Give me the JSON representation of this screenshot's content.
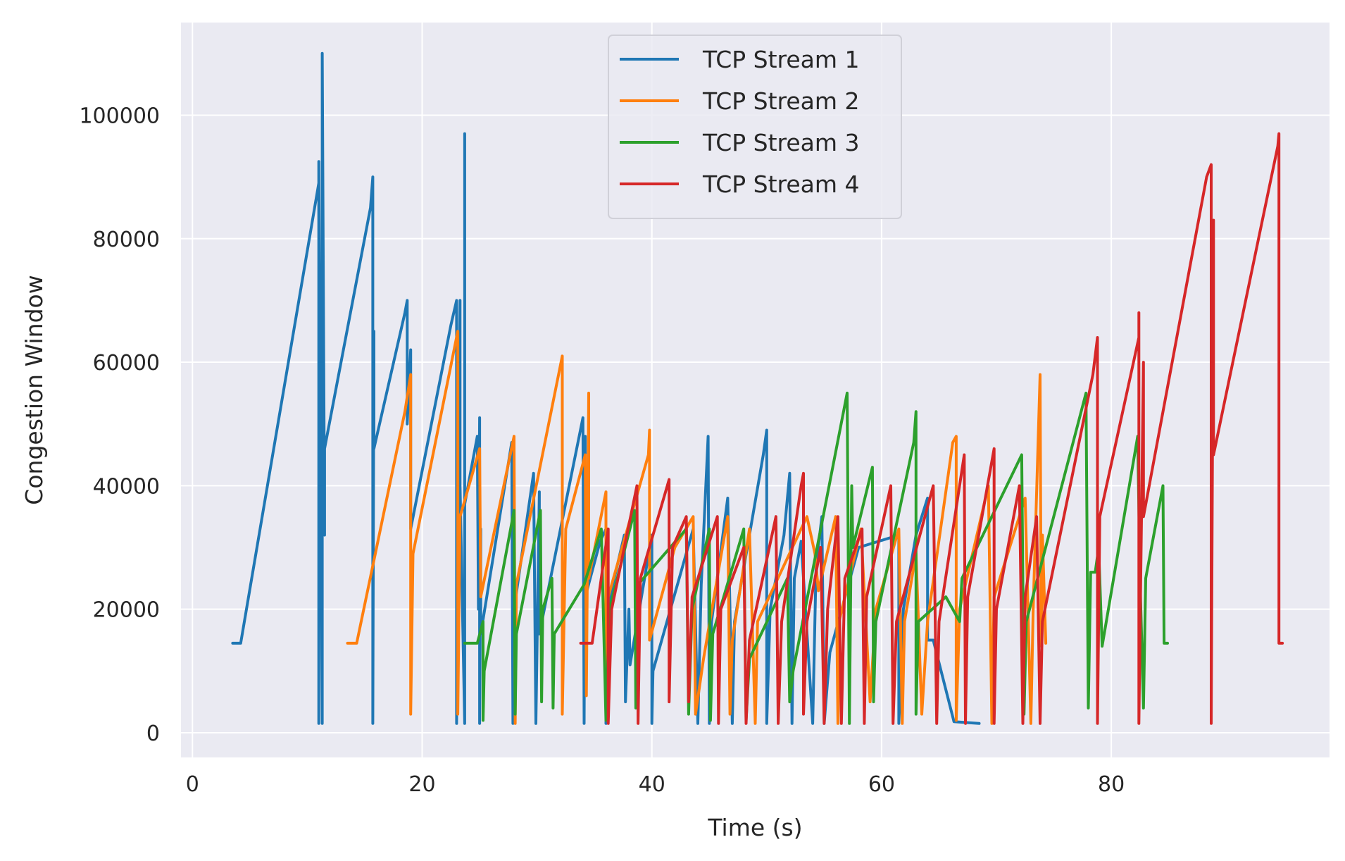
{
  "chart_data": {
    "type": "line",
    "title": "",
    "xlabel": "Time (s)",
    "ylabel": "Congestion Window",
    "xlim": [
      -1,
      99
    ],
    "ylim": [
      -4000,
      115000
    ],
    "xticks": [
      0,
      20,
      40,
      60,
      80
    ],
    "yticks": [
      0,
      20000,
      40000,
      60000,
      80000,
      100000
    ],
    "grid": true,
    "legend_position": "top-center",
    "series": [
      {
        "name": "TCP Stream 1",
        "color": "#1f77b4",
        "points": [
          [
            3.5,
            14500
          ],
          [
            4.2,
            14500
          ],
          [
            11.0,
            89000
          ],
          [
            11.0,
            1500
          ],
          [
            11.0,
            92500
          ],
          [
            11.3,
            1500
          ],
          [
            11.3,
            110000
          ],
          [
            11.5,
            32000
          ],
          [
            11.5,
            46000
          ],
          [
            15.5,
            85000
          ],
          [
            15.7,
            90000
          ],
          [
            15.7,
            1500
          ],
          [
            15.8,
            65000
          ],
          [
            15.8,
            46000
          ],
          [
            18.5,
            68000
          ],
          [
            18.7,
            70000
          ],
          [
            18.7,
            50000
          ],
          [
            19.0,
            62000
          ],
          [
            19.0,
            33000
          ],
          [
            22.5,
            66000
          ],
          [
            23.0,
            70000
          ],
          [
            23.0,
            1500
          ],
          [
            23.3,
            70000
          ],
          [
            23.3,
            40000
          ],
          [
            23.7,
            1500
          ],
          [
            23.7,
            97000
          ],
          [
            23.7,
            37000
          ],
          [
            24.8,
            48000
          ],
          [
            24.9,
            20000
          ],
          [
            25.0,
            51000
          ],
          [
            25.0,
            1500
          ],
          [
            25.1,
            33000
          ],
          [
            25.1,
            16000
          ],
          [
            27.8,
            47000
          ],
          [
            27.9,
            1500
          ],
          [
            28.0,
            40000
          ],
          [
            28.0,
            20000
          ],
          [
            29.7,
            42000
          ],
          [
            29.9,
            1500
          ],
          [
            30.2,
            39000
          ],
          [
            30.2,
            16000
          ],
          [
            34.0,
            51000
          ],
          [
            34.1,
            1500
          ],
          [
            34.2,
            48000
          ],
          [
            34.2,
            22000
          ],
          [
            35.5,
            31000
          ],
          [
            36.0,
            33000
          ],
          [
            36.0,
            1500
          ],
          [
            36.1,
            20000
          ],
          [
            37.6,
            32000
          ],
          [
            37.7,
            5000
          ],
          [
            38.0,
            20000
          ],
          [
            38.1,
            11000
          ],
          [
            40.0,
            32000
          ],
          [
            40.0,
            1500
          ],
          [
            40.1,
            10000
          ],
          [
            43.6,
            33000
          ],
          [
            44.0,
            1500
          ],
          [
            44.3,
            24000
          ],
          [
            44.9,
            48000
          ],
          [
            45.0,
            1500
          ],
          [
            45.2,
            18000
          ],
          [
            46.6,
            38000
          ],
          [
            47.0,
            1500
          ],
          [
            47.2,
            18000
          ],
          [
            49.7,
            45000
          ],
          [
            50.0,
            49000
          ],
          [
            50.0,
            1500
          ],
          [
            50.3,
            20000
          ],
          [
            51.5,
            32000
          ],
          [
            52.0,
            42000
          ],
          [
            52.2,
            1500
          ],
          [
            52.4,
            25000
          ],
          [
            53.0,
            31000
          ],
          [
            54.0,
            1500
          ],
          [
            54.3,
            27000
          ],
          [
            54.8,
            35000
          ],
          [
            55.0,
            1500
          ],
          [
            55.5,
            13000
          ],
          [
            58.0,
            30000
          ],
          [
            61.5,
            32000
          ],
          [
            61.5,
            1500
          ],
          [
            61.9,
            20000
          ],
          [
            63.0,
            32000
          ],
          [
            64.0,
            38000
          ],
          [
            64.0,
            15000
          ],
          [
            64.5,
            15000
          ],
          [
            66.3,
            1800
          ],
          [
            68.5,
            1500
          ]
        ]
      },
      {
        "name": "TCP Stream 2",
        "color": "#ff7f0e",
        "points": [
          [
            13.5,
            14500
          ],
          [
            14.3,
            14500
          ],
          [
            18.5,
            52000
          ],
          [
            19.0,
            58000
          ],
          [
            19.0,
            3000
          ],
          [
            19.2,
            29000
          ],
          [
            23.1,
            65000
          ],
          [
            23.1,
            3000
          ],
          [
            23.3,
            35000
          ],
          [
            25.0,
            46000
          ],
          [
            25.1,
            22000
          ],
          [
            28.0,
            48000
          ],
          [
            28.1,
            1500
          ],
          [
            28.2,
            24000
          ],
          [
            32.2,
            61000
          ],
          [
            32.2,
            3000
          ],
          [
            32.5,
            33000
          ],
          [
            34.2,
            45000
          ],
          [
            34.3,
            6000
          ],
          [
            34.5,
            55000
          ],
          [
            34.5,
            25000
          ],
          [
            36.0,
            39000
          ],
          [
            36.0,
            2000
          ],
          [
            36.2,
            22000
          ],
          [
            39.7,
            45000
          ],
          [
            39.8,
            49000
          ],
          [
            39.8,
            15000
          ],
          [
            42.0,
            30000
          ],
          [
            43.6,
            35000
          ],
          [
            43.8,
            3000
          ],
          [
            44.5,
            12000
          ],
          [
            46.6,
            35000
          ],
          [
            46.8,
            3000
          ],
          [
            47.0,
            15000
          ],
          [
            48.5,
            33000
          ],
          [
            49.0,
            1500
          ],
          [
            49.2,
            18000
          ],
          [
            53.5,
            35000
          ],
          [
            54.2,
            29000
          ],
          [
            54.5,
            23000
          ],
          [
            56.0,
            35000
          ],
          [
            56.2,
            1500
          ],
          [
            56.3,
            18000
          ],
          [
            58.2,
            33000
          ],
          [
            59.0,
            5000
          ],
          [
            59.5,
            20000
          ],
          [
            61.5,
            33000
          ],
          [
            61.8,
            1500
          ],
          [
            62.0,
            18000
          ],
          [
            63.0,
            29000
          ],
          [
            63.5,
            3000
          ],
          [
            64.0,
            18000
          ],
          [
            66.2,
            47000
          ],
          [
            66.5,
            48000
          ],
          [
            66.5,
            2000
          ],
          [
            66.8,
            20000
          ],
          [
            69.3,
            40000
          ],
          [
            69.6,
            1500
          ],
          [
            69.8,
            22000
          ],
          [
            72.5,
            38000
          ],
          [
            73.0,
            1500
          ],
          [
            73.2,
            20000
          ],
          [
            73.8,
            58000
          ],
          [
            73.9,
            14000
          ],
          [
            74.0,
            32000
          ],
          [
            74.3,
            14500
          ]
        ]
      },
      {
        "name": "TCP Stream 3",
        "color": "#2ca02c",
        "points": [
          [
            23.7,
            14500
          ],
          [
            24.8,
            14500
          ],
          [
            25.3,
            18000
          ],
          [
            25.3,
            2000
          ],
          [
            25.4,
            10000
          ],
          [
            28.0,
            36000
          ],
          [
            28.1,
            3000
          ],
          [
            28.2,
            16000
          ],
          [
            30.3,
            36000
          ],
          [
            30.4,
            5000
          ],
          [
            30.5,
            20000
          ],
          [
            31.3,
            25000
          ],
          [
            31.4,
            4000
          ],
          [
            31.5,
            16000
          ],
          [
            34.1,
            24000
          ],
          [
            35.6,
            33000
          ],
          [
            36.0,
            2000
          ],
          [
            36.3,
            20000
          ],
          [
            38.5,
            36000
          ],
          [
            38.6,
            4000
          ],
          [
            38.8,
            24000
          ],
          [
            43.0,
            33000
          ],
          [
            43.2,
            3000
          ],
          [
            43.5,
            20000
          ],
          [
            45.0,
            33000
          ],
          [
            45.1,
            2000
          ],
          [
            45.3,
            16000
          ],
          [
            48.0,
            33000
          ],
          [
            48.2,
            2000
          ],
          [
            48.5,
            12000
          ],
          [
            51.8,
            25000
          ],
          [
            52.0,
            5000
          ],
          [
            52.3,
            10000
          ],
          [
            57.0,
            55000
          ],
          [
            57.2,
            1500
          ],
          [
            57.4,
            40000
          ],
          [
            57.5,
            30000
          ],
          [
            59.2,
            43000
          ],
          [
            59.3,
            5000
          ],
          [
            59.5,
            18000
          ],
          [
            62.8,
            47000
          ],
          [
            63.0,
            52000
          ],
          [
            63.0,
            3000
          ],
          [
            63.2,
            18000
          ],
          [
            65.6,
            22000
          ],
          [
            66.8,
            18000
          ],
          [
            67.0,
            25000
          ],
          [
            72.2,
            45000
          ],
          [
            72.4,
            3000
          ],
          [
            72.6,
            18000
          ],
          [
            77.8,
            55000
          ],
          [
            78.0,
            4000
          ],
          [
            78.2,
            26000
          ],
          [
            78.6,
            26000
          ],
          [
            78.9,
            30000
          ],
          [
            79.2,
            14000
          ],
          [
            82.3,
            48000
          ],
          [
            82.5,
            25000
          ],
          [
            82.8,
            4000
          ],
          [
            83.0,
            25000
          ],
          [
            84.5,
            40000
          ],
          [
            84.6,
            14500
          ],
          [
            84.9,
            14500
          ]
        ]
      },
      {
        "name": "TCP Stream 4",
        "color": "#d62728",
        "points": [
          [
            33.8,
            14500
          ],
          [
            34.8,
            14500
          ],
          [
            36.2,
            33000
          ],
          [
            36.2,
            1500
          ],
          [
            36.5,
            20000
          ],
          [
            38.7,
            40000
          ],
          [
            38.8,
            1500
          ],
          [
            39.0,
            25000
          ],
          [
            41.5,
            41000
          ],
          [
            41.5,
            5000
          ],
          [
            41.8,
            30000
          ],
          [
            43.0,
            35000
          ],
          [
            43.2,
            5000
          ],
          [
            43.5,
            22000
          ],
          [
            45.7,
            35000
          ],
          [
            45.8,
            1500
          ],
          [
            46.0,
            20000
          ],
          [
            48.0,
            30000
          ],
          [
            48.2,
            1500
          ],
          [
            48.5,
            15000
          ],
          [
            50.8,
            35000
          ],
          [
            51.0,
            1500
          ],
          [
            51.3,
            18000
          ],
          [
            53.0,
            40000
          ],
          [
            53.2,
            42000
          ],
          [
            53.2,
            3000
          ],
          [
            53.5,
            18000
          ],
          [
            54.7,
            30000
          ],
          [
            55.0,
            1500
          ],
          [
            55.3,
            20000
          ],
          [
            56.2,
            35000
          ],
          [
            56.5,
            1500
          ],
          [
            56.8,
            25000
          ],
          [
            58.3,
            33000
          ],
          [
            58.5,
            1500
          ],
          [
            58.7,
            22000
          ],
          [
            60.8,
            40000
          ],
          [
            61.0,
            1500
          ],
          [
            61.3,
            18000
          ],
          [
            64.5,
            40000
          ],
          [
            64.8,
            1500
          ],
          [
            65.0,
            18000
          ],
          [
            67.2,
            45000
          ],
          [
            67.3,
            1500
          ],
          [
            67.5,
            22000
          ],
          [
            69.8,
            46000
          ],
          [
            69.8,
            1500
          ],
          [
            70.0,
            20000
          ],
          [
            72.0,
            40000
          ],
          [
            72.3,
            1500
          ],
          [
            72.5,
            22000
          ],
          [
            73.5,
            35000
          ],
          [
            73.8,
            1500
          ],
          [
            74.0,
            18000
          ],
          [
            78.4,
            58000
          ],
          [
            78.8,
            64000
          ],
          [
            78.8,
            1500
          ],
          [
            79.0,
            35000
          ],
          [
            82.4,
            64000
          ],
          [
            82.4,
            68000
          ],
          [
            82.4,
            1500
          ],
          [
            82.8,
            60000
          ],
          [
            82.8,
            35000
          ],
          [
            88.3,
            90000
          ],
          [
            88.7,
            92000
          ],
          [
            88.7,
            1500
          ],
          [
            88.9,
            83000
          ],
          [
            88.9,
            45000
          ],
          [
            94.5,
            95000
          ],
          [
            94.6,
            97000
          ],
          [
            94.6,
            14500
          ],
          [
            94.9,
            14500
          ]
        ]
      }
    ]
  }
}
